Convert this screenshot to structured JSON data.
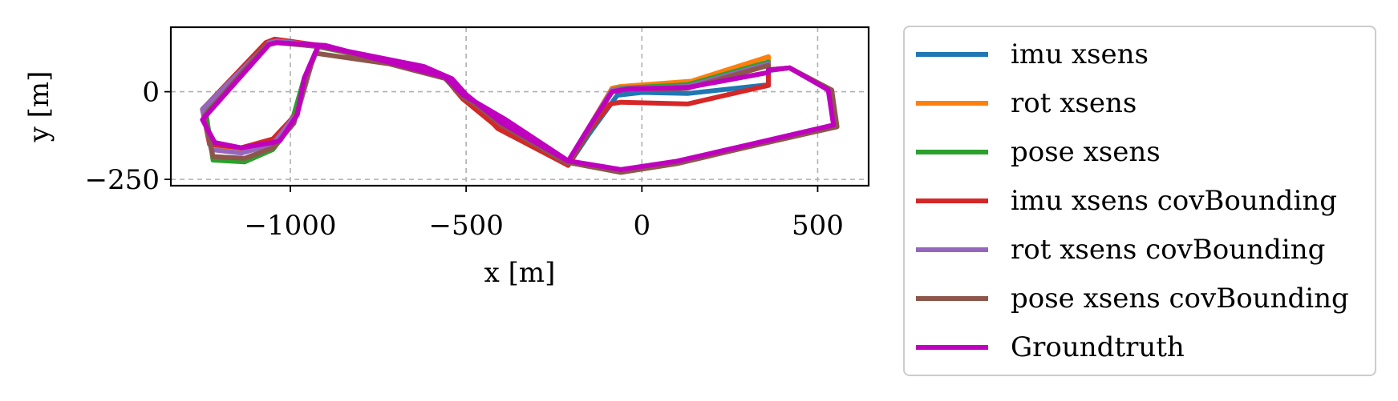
{
  "chart_data": {
    "type": "line",
    "title": "",
    "xlabel": "x [m]",
    "ylabel": "y [m]",
    "xlim": [
      -1340,
      645
    ],
    "ylim": [
      -268,
      184
    ],
    "x_ticks": [
      {
        "value": -1000,
        "label": "−1000"
      },
      {
        "value": -500,
        "label": "−500"
      },
      {
        "value": 0,
        "label": "0"
      },
      {
        "value": 500,
        "label": "500"
      }
    ],
    "y_ticks": [
      {
        "value": 0,
        "label": "0"
      },
      {
        "value": -250,
        "label": "−250"
      }
    ],
    "grid": true,
    "legend_position": "outside-right",
    "series": [
      {
        "name": "imu xsens",
        "color": "#1f77b4",
        "points": [
          [
            0,
            -2
          ],
          [
            130,
            -5
          ],
          [
            360,
            20
          ],
          [
            360,
            60
          ],
          [
            420,
            68
          ],
          [
            535,
            5
          ],
          [
            550,
            -95
          ],
          [
            300,
            -155
          ],
          [
            100,
            -200
          ],
          [
            -60,
            -225
          ],
          [
            -210,
            -200
          ],
          [
            -390,
            -80
          ],
          [
            -510,
            -10
          ],
          [
            -560,
            40
          ],
          [
            -900,
            130
          ],
          [
            -1040,
            145
          ],
          [
            -1060,
            140
          ],
          [
            -1250,
            -50
          ],
          [
            -1225,
            -150
          ],
          [
            -1140,
            -165
          ],
          [
            -1050,
            -140
          ],
          [
            -980,
            -60
          ],
          [
            -940,
            80
          ],
          [
            -920,
            130
          ],
          [
            -620,
            70
          ],
          [
            -540,
            35
          ],
          [
            -500,
            -10
          ],
          [
            -400,
            -90
          ],
          [
            -210,
            -210
          ],
          [
            -150,
            -120
          ],
          [
            -70,
            -10
          ],
          [
            0,
            -2
          ]
        ]
      },
      {
        "name": "rot xsens",
        "color": "#ff7f0e",
        "points": [
          [
            -60,
            15
          ],
          [
            140,
            30
          ],
          [
            360,
            100
          ],
          [
            360,
            62
          ],
          [
            420,
            68
          ],
          [
            535,
            5
          ],
          [
            550,
            -95
          ],
          [
            300,
            -155
          ],
          [
            100,
            -200
          ],
          [
            -60,
            -225
          ],
          [
            -210,
            -200
          ],
          [
            -390,
            -80
          ],
          [
            -510,
            -10
          ],
          [
            -560,
            40
          ],
          [
            -900,
            130
          ],
          [
            -1040,
            145
          ],
          [
            -1060,
            140
          ],
          [
            -1250,
            -50
          ],
          [
            -1225,
            -150
          ],
          [
            -1140,
            -165
          ],
          [
            -1050,
            -140
          ],
          [
            -980,
            -60
          ],
          [
            -940,
            80
          ],
          [
            -920,
            130
          ],
          [
            -620,
            70
          ],
          [
            -540,
            35
          ],
          [
            -500,
            -10
          ],
          [
            -400,
            -90
          ],
          [
            -210,
            -200
          ],
          [
            -150,
            -100
          ],
          [
            -85,
            10
          ],
          [
            -60,
            15
          ]
        ]
      },
      {
        "name": "pose xsens",
        "color": "#2ca02c",
        "points": [
          [
            -60,
            10
          ],
          [
            130,
            20
          ],
          [
            360,
            85
          ],
          [
            360,
            62
          ],
          [
            420,
            68
          ],
          [
            535,
            5
          ],
          [
            550,
            -95
          ],
          [
            300,
            -155
          ],
          [
            100,
            -200
          ],
          [
            -60,
            -225
          ],
          [
            -210,
            -200
          ],
          [
            -390,
            -80
          ],
          [
            -510,
            -10
          ],
          [
            -560,
            40
          ],
          [
            -900,
            130
          ],
          [
            -1040,
            140
          ],
          [
            -1070,
            132
          ],
          [
            -1240,
            -60
          ],
          [
            -1220,
            -195
          ],
          [
            -1130,
            -200
          ],
          [
            -1050,
            -165
          ],
          [
            -1000,
            -100
          ],
          [
            -960,
            40
          ],
          [
            -940,
            80
          ],
          [
            -920,
            128
          ],
          [
            -620,
            68
          ],
          [
            -540,
            33
          ],
          [
            -500,
            -12
          ],
          [
            -400,
            -92
          ],
          [
            -210,
            -205
          ],
          [
            -150,
            -102
          ],
          [
            -85,
            5
          ],
          [
            -60,
            10
          ]
        ]
      },
      {
        "name": "imu xsens covBounding",
        "color": "#d62728",
        "points": [
          [
            -60,
            -30
          ],
          [
            130,
            -35
          ],
          [
            360,
            18
          ],
          [
            360,
            62
          ],
          [
            420,
            68
          ],
          [
            535,
            5
          ],
          [
            550,
            -95
          ],
          [
            300,
            -155
          ],
          [
            100,
            -200
          ],
          [
            -60,
            -225
          ],
          [
            -210,
            -200
          ],
          [
            -400,
            -110
          ],
          [
            -510,
            -20
          ],
          [
            -560,
            40
          ],
          [
            -900,
            130
          ],
          [
            -1045,
            150
          ],
          [
            -1070,
            140
          ],
          [
            -1250,
            -50
          ],
          [
            -1230,
            -150
          ],
          [
            -1140,
            -160
          ],
          [
            -1050,
            -135
          ],
          [
            -980,
            -60
          ],
          [
            -940,
            80
          ],
          [
            -920,
            130
          ],
          [
            -620,
            70
          ],
          [
            -540,
            35
          ],
          [
            -500,
            -10
          ],
          [
            -410,
            -105
          ],
          [
            -210,
            -210
          ],
          [
            -150,
            -110
          ],
          [
            -90,
            -35
          ],
          [
            -60,
            -30
          ]
        ]
      },
      {
        "name": "rot xsens covBounding",
        "color": "#9467bd",
        "points": [
          [
            -60,
            8
          ],
          [
            130,
            15
          ],
          [
            360,
            80
          ],
          [
            360,
            62
          ],
          [
            420,
            68
          ],
          [
            535,
            5
          ],
          [
            550,
            -95
          ],
          [
            300,
            -155
          ],
          [
            100,
            -200
          ],
          [
            -60,
            -225
          ],
          [
            -210,
            -200
          ],
          [
            -390,
            -80
          ],
          [
            -510,
            -10
          ],
          [
            -560,
            40
          ],
          [
            -900,
            130
          ],
          [
            -1040,
            145
          ],
          [
            -1060,
            140
          ],
          [
            -1250,
            -50
          ],
          [
            -1225,
            -165
          ],
          [
            -1140,
            -175
          ],
          [
            -1050,
            -150
          ],
          [
            -980,
            -60
          ],
          [
            -940,
            80
          ],
          [
            -920,
            130
          ],
          [
            -620,
            70
          ],
          [
            -540,
            35
          ],
          [
            -500,
            -10
          ],
          [
            -400,
            -90
          ],
          [
            -210,
            -200
          ],
          [
            -150,
            -100
          ],
          [
            -85,
            5
          ],
          [
            -60,
            8
          ]
        ]
      },
      {
        "name": "pose xsens covBounding",
        "color": "#8c564b",
        "points": [
          [
            -60,
            5
          ],
          [
            130,
            10
          ],
          [
            360,
            75
          ],
          [
            360,
            62
          ],
          [
            420,
            68
          ],
          [
            540,
            5
          ],
          [
            555,
            -100
          ],
          [
            300,
            -158
          ],
          [
            100,
            -205
          ],
          [
            -60,
            -230
          ],
          [
            -210,
            -202
          ],
          [
            -390,
            -85
          ],
          [
            -510,
            -15
          ],
          [
            -560,
            38
          ],
          [
            -900,
            127
          ],
          [
            -1040,
            140
          ],
          [
            -1070,
            132
          ],
          [
            -1245,
            -70
          ],
          [
            -1220,
            -185
          ],
          [
            -1130,
            -190
          ],
          [
            -1050,
            -160
          ],
          [
            -990,
            -90
          ],
          [
            -950,
            50
          ],
          [
            -930,
            110
          ],
          [
            -620,
            65
          ],
          [
            -540,
            30
          ],
          [
            -500,
            -15
          ],
          [
            -400,
            -95
          ],
          [
            -210,
            -205
          ],
          [
            -150,
            -105
          ],
          [
            -85,
            0
          ],
          [
            -60,
            5
          ]
        ]
      },
      {
        "name": "Groundtruth",
        "color": "#bf00bf",
        "points": [
          [
            -40,
            8
          ],
          [
            130,
            12
          ],
          [
            360,
            55
          ],
          [
            360,
            62
          ],
          [
            420,
            68
          ],
          [
            530,
            5
          ],
          [
            545,
            -95
          ],
          [
            300,
            -152
          ],
          [
            100,
            -198
          ],
          [
            -60,
            -222
          ],
          [
            -210,
            -197
          ],
          [
            -390,
            -78
          ],
          [
            -510,
            -8
          ],
          [
            -560,
            42
          ],
          [
            -900,
            132
          ],
          [
            -1040,
            140
          ],
          [
            -1060,
            135
          ],
          [
            -1250,
            -80
          ],
          [
            -1215,
            -145
          ],
          [
            -1140,
            -160
          ],
          [
            -1050,
            -145
          ],
          [
            -1030,
            -140
          ],
          [
            -980,
            -65
          ],
          [
            -960,
            40
          ],
          [
            -945,
            75
          ],
          [
            -920,
            132
          ],
          [
            -620,
            72
          ],
          [
            -540,
            37
          ],
          [
            -500,
            -8
          ],
          [
            -400,
            -88
          ],
          [
            -210,
            -198
          ],
          [
            -150,
            -100
          ],
          [
            -85,
            0
          ],
          [
            -40,
            8
          ]
        ]
      }
    ]
  }
}
